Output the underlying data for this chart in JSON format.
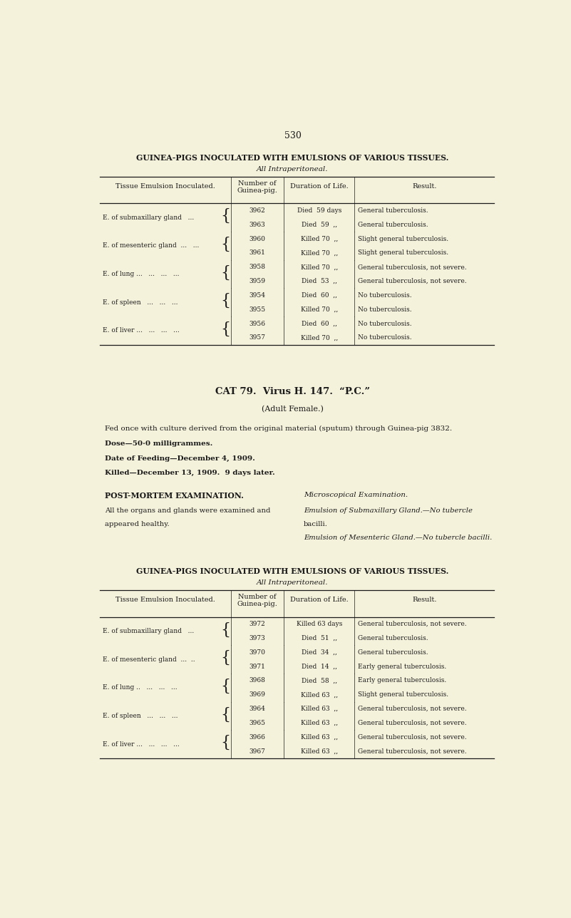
{
  "bg_color": "#f5f2dc",
  "text_color": "#1a1a1a",
  "page_number": "530",
  "table1": {
    "title": "GUINEA-PIGS INOCULATED WITH EMULSIONS OF VARIOUS TISSUES.",
    "subtitle": "All Intraperitoneal.",
    "col_headers": [
      "Tissue Emulsion Inoculated.",
      "Number of\nGuinea-pig.",
      "Duration of Life.",
      "Result."
    ],
    "rows": [
      {
        "tissue": "E. of submaxillary gland   ...",
        "pigs": [
          "3962",
          "3963"
        ],
        "durations": [
          "Died  59 days",
          "Died  59  ,,"
        ],
        "results": [
          "General tuberculosis.",
          "General tuberculosis."
        ]
      },
      {
        "tissue": "E. of mesenteric gland  ...   ...",
        "pigs": [
          "3960",
          "3961"
        ],
        "durations": [
          "Killed 70  ,,",
          "Killed 70  ,,"
        ],
        "results": [
          "Slight general tuberculosis.",
          "Slight general tuberculosis."
        ]
      },
      {
        "tissue": "E. of lung ...   ...   ...   ...",
        "pigs": [
          "3958",
          "3959"
        ],
        "durations": [
          "Killed 70  ,,",
          "Died  53  ,,"
        ],
        "results": [
          "General tuberculosis, not severe.",
          "General tuberculosis, not severe."
        ]
      },
      {
        "tissue": "E. of spleen   ...   ...   ...",
        "pigs": [
          "3954",
          "3955"
        ],
        "durations": [
          "Died  60  ,,",
          "Killed 70  ,,"
        ],
        "results": [
          "No tuberculosis.",
          "No tuberculosis."
        ]
      },
      {
        "tissue": "E. of liver ...   ...   ...   ...",
        "pigs": [
          "3956",
          "3957"
        ],
        "durations": [
          "Died  60  ,,",
          "Killed 70  ,,"
        ],
        "results": [
          "No tuberculosis.",
          "No tuberculosis."
        ]
      }
    ]
  },
  "cat_section": {
    "heading": "CAT 79.  Virus H. 147.  “P.C.”",
    "subheading": "(Adult Female.)",
    "body_lines": [
      "Fed once with culture derived from the original material (sputum) through Guinea-pig 3832.",
      "Dose—50·0 milligrammes.",
      "Date of Feeding—December 4, 1909.",
      "Killed—December 13, 1909.  9 days later."
    ],
    "postmortem_left_title": "POST-MORTEM EXAMINATION.",
    "postmortem_body_left": "All the organs and glands were examined and\nappeared healthy.",
    "postmortem_right_title": "Microscopical Examination.",
    "postmortem_right_lines": [
      "Emulsion of Submaxillary Gland.—No tubercle",
      "bacilli.",
      "Emulsion of Mesenteric Gland.—No tubercle bacilli."
    ]
  },
  "table2": {
    "title": "GUINEA-PIGS INOCULATED WITH EMULSIONS OF VARIOUS TISSUES.",
    "subtitle": "All Intraperitoneal.",
    "col_headers": [
      "Tissue Emulsion Inoculated.",
      "Number of\nGuinea-pig.",
      "Duration of Life.",
      "Result."
    ],
    "rows": [
      {
        "tissue": "E. of submaxillary gland   ...",
        "pigs": [
          "3972",
          "3973"
        ],
        "durations": [
          "Killed 63 days",
          "Died  51  ,,"
        ],
        "results": [
          "General tuberculosis, not severe.",
          "General tuberculosis."
        ]
      },
      {
        "tissue": "E. of mesenteric gland  ...  ..",
        "pigs": [
          "3970",
          "3971"
        ],
        "durations": [
          "Died  34  ,,",
          "Died  14  ,,"
        ],
        "results": [
          "General tuberculosis.",
          "Early general tuberculosis."
        ]
      },
      {
        "tissue": "E. of lung ..   ...   ...   ...",
        "pigs": [
          "3968",
          "3969"
        ],
        "durations": [
          "Died  58  ,,",
          "Killed 63  ,,"
        ],
        "results": [
          "Early general tuberculosis.",
          "Slight general tuberculosis."
        ]
      },
      {
        "tissue": "E. of spleen   ...   ...   ...",
        "pigs": [
          "3964",
          "3965"
        ],
        "durations": [
          "Killed 63  ,,",
          "Killed 63  ,,"
        ],
        "results": [
          "General tuberculosis, not severe.",
          "General tuberculosis, not severe."
        ]
      },
      {
        "tissue": "E. of liver ...   ...   ...   ...",
        "pigs": [
          "3966",
          "3967"
        ],
        "durations": [
          "Killed 63  ,,",
          "Killed 63  ,,"
        ],
        "results": [
          "General tuberculosis, not severe.",
          "General tuberculosis, not severe."
        ]
      }
    ]
  }
}
